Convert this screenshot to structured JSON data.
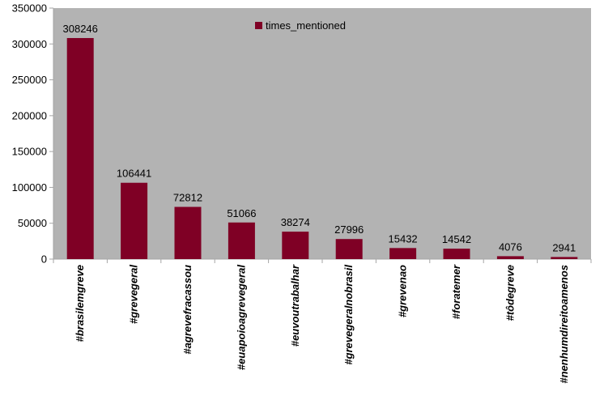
{
  "chart_data": {
    "type": "bar",
    "categories": [
      "#brasilemgreve",
      "#grevegeral",
      "#agrevefracassou",
      "#euapoioagrevegeral",
      "#euvoutrabalhar",
      "#grevegeralnobrasil",
      "#grevenao",
      "#foratemer",
      "#tôdegreve",
      "#nenhumdireitoamenos"
    ],
    "series": [
      {
        "name": "times_mentioned",
        "values": [
          308246,
          106441,
          72812,
          51066,
          38274,
          27996,
          15432,
          14542,
          4076,
          2941
        ]
      }
    ],
    "data_labels": [
      "308246",
      "106441",
      "72812",
      "51066",
      "38274",
      "27996",
      "15432",
      "14542",
      "4076",
      "2941"
    ],
    "yticks": [
      "0",
      "50000",
      "100000",
      "150000",
      "200000",
      "250000",
      "300000",
      "350000"
    ],
    "ylim": [
      0,
      350000
    ],
    "title": "",
    "xlabel": "",
    "ylabel": "",
    "legend_position": "top-center",
    "grid": false,
    "colors": {
      "bar": "#7f0025",
      "plot_background": "#b3b3b3",
      "page_background": "#ffffff",
      "axis": "#a6a6a6"
    }
  }
}
